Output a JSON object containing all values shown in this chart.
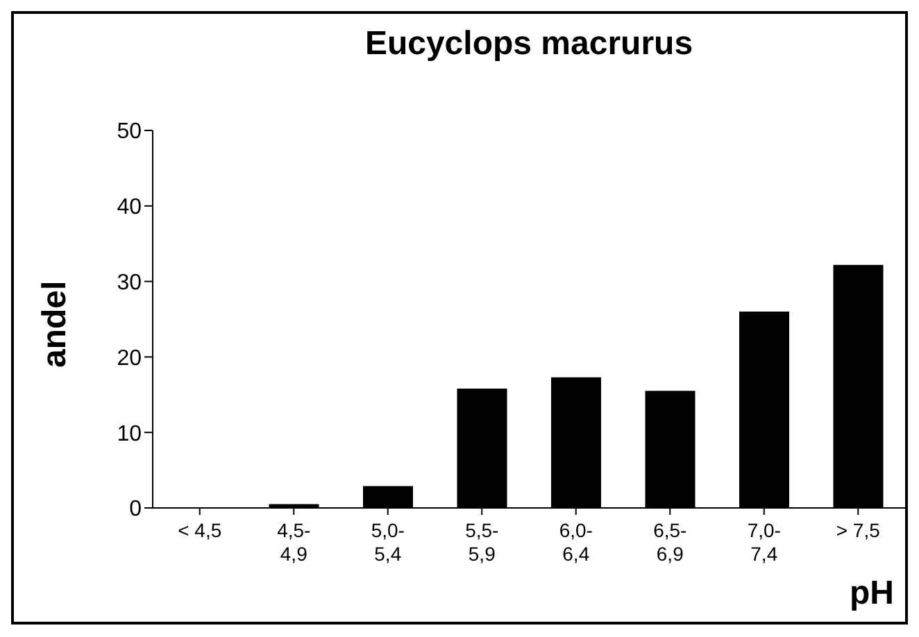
{
  "chart_data": {
    "type": "bar",
    "title": "Eucyclops macrurus",
    "xlabel": "pH",
    "ylabel": "andel",
    "categories": [
      "< 4,5",
      "4,5-4,9",
      "5,0-5,4",
      "5,5-5,9",
      "6,0-6,4",
      "6,5-6,9",
      "7,0-7,4",
      "> 7,5"
    ],
    "values": [
      0,
      0.5,
      2.9,
      15.8,
      17.3,
      15.5,
      26.0,
      32.2
    ],
    "color": "#000000",
    "ylim": [
      0,
      50
    ],
    "yticks": [
      0,
      10,
      20,
      30,
      40,
      50
    ],
    "grid": false,
    "legend": false
  }
}
